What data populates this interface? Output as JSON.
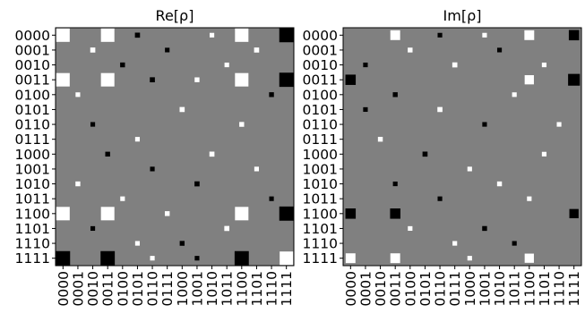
{
  "chart_data": [
    {
      "type": "heatmap",
      "title": "Re[ρ]",
      "labels": [
        "0000",
        "0001",
        "0010",
        "0011",
        "0100",
        "0101",
        "0110",
        "0111",
        "1000",
        "1001",
        "1010",
        "1011",
        "1100",
        "1101",
        "1110",
        "1111"
      ],
      "background": "#808080",
      "marks": [
        {
          "r": 0,
          "c": 0,
          "v": 0.85
        },
        {
          "r": 0,
          "c": 3,
          "v": 0.85
        },
        {
          "r": 0,
          "c": 12,
          "v": 0.85
        },
        {
          "r": 0,
          "c": 15,
          "v": -0.95
        },
        {
          "r": 3,
          "c": 0,
          "v": 0.85
        },
        {
          "r": 3,
          "c": 3,
          "v": 0.85
        },
        {
          "r": 3,
          "c": 12,
          "v": 0.85
        },
        {
          "r": 3,
          "c": 15,
          "v": -0.95
        },
        {
          "r": 12,
          "c": 0,
          "v": 0.85
        },
        {
          "r": 12,
          "c": 3,
          "v": 0.85
        },
        {
          "r": 12,
          "c": 12,
          "v": 0.85
        },
        {
          "r": 12,
          "c": 15,
          "v": -0.95
        },
        {
          "r": 15,
          "c": 0,
          "v": -0.95
        },
        {
          "r": 15,
          "c": 3,
          "v": -0.95
        },
        {
          "r": 15,
          "c": 12,
          "v": -0.95
        },
        {
          "r": 15,
          "c": 15,
          "v": 0.85
        }
      ],
      "noise": [
        {
          "r": 0,
          "c": 5,
          "v": -0.12
        },
        {
          "r": 0,
          "c": 10,
          "v": 0.1
        },
        {
          "r": 1,
          "c": 2,
          "v": 0.12
        },
        {
          "r": 1,
          "c": 7,
          "v": -0.1
        },
        {
          "r": 1,
          "c": 13,
          "v": 0.12
        },
        {
          "r": 2,
          "c": 4,
          "v": -0.11
        },
        {
          "r": 2,
          "c": 11,
          "v": 0.1
        },
        {
          "r": 3,
          "c": 6,
          "v": -0.12
        },
        {
          "r": 3,
          "c": 9,
          "v": 0.11
        },
        {
          "r": 4,
          "c": 1,
          "v": 0.1
        },
        {
          "r": 4,
          "c": 14,
          "v": -0.11
        },
        {
          "r": 5,
          "c": 8,
          "v": 0.12
        },
        {
          "r": 6,
          "c": 2,
          "v": -0.1
        },
        {
          "r": 6,
          "c": 12,
          "v": 0.11
        },
        {
          "r": 7,
          "c": 5,
          "v": 0.1
        },
        {
          "r": 8,
          "c": 3,
          "v": -0.11
        },
        {
          "r": 8,
          "c": 10,
          "v": 0.12
        },
        {
          "r": 9,
          "c": 6,
          "v": -0.1
        },
        {
          "r": 9,
          "c": 13,
          "v": 0.1
        },
        {
          "r": 10,
          "c": 1,
          "v": 0.11
        },
        {
          "r": 10,
          "c": 9,
          "v": -0.12
        },
        {
          "r": 11,
          "c": 4,
          "v": 0.1
        },
        {
          "r": 11,
          "c": 14,
          "v": -0.1
        },
        {
          "r": 12,
          "c": 7,
          "v": 0.11
        },
        {
          "r": 13,
          "c": 2,
          "v": -0.1
        },
        {
          "r": 13,
          "c": 11,
          "v": 0.12
        },
        {
          "r": 14,
          "c": 5,
          "v": 0.1
        },
        {
          "r": 14,
          "c": 8,
          "v": -0.11
        },
        {
          "r": 15,
          "c": 6,
          "v": 0.1
        },
        {
          "r": 15,
          "c": 9,
          "v": -0.1
        }
      ]
    },
    {
      "type": "heatmap",
      "title": "Im[ρ]",
      "labels": [
        "0000",
        "0001",
        "0010",
        "0011",
        "0100",
        "0101",
        "0110",
        "0111",
        "1000",
        "1001",
        "1010",
        "1011",
        "1100",
        "1101",
        "1110",
        "1111"
      ],
      "background": "#808080",
      "marks": [
        {
          "r": 0,
          "c": 3,
          "v": 0.45
        },
        {
          "r": 0,
          "c": 12,
          "v": 0.45
        },
        {
          "r": 0,
          "c": 15,
          "v": -0.5
        },
        {
          "r": 3,
          "c": 0,
          "v": -0.5
        },
        {
          "r": 3,
          "c": 12,
          "v": 0.4
        },
        {
          "r": 3,
          "c": 15,
          "v": -0.65
        },
        {
          "r": 12,
          "c": 0,
          "v": -0.5
        },
        {
          "r": 12,
          "c": 3,
          "v": -0.5
        },
        {
          "r": 12,
          "c": 15,
          "v": -0.4
        },
        {
          "r": 15,
          "c": 0,
          "v": 0.45
        },
        {
          "r": 15,
          "c": 3,
          "v": 0.45
        },
        {
          "r": 15,
          "c": 12,
          "v": 0.4
        }
      ],
      "noise": [
        {
          "r": 0,
          "c": 6,
          "v": -0.1
        },
        {
          "r": 0,
          "c": 9,
          "v": 0.1
        },
        {
          "r": 1,
          "c": 4,
          "v": 0.11
        },
        {
          "r": 1,
          "c": 10,
          "v": -0.1
        },
        {
          "r": 2,
          "c": 1,
          "v": -0.1
        },
        {
          "r": 2,
          "c": 7,
          "v": 0.12
        },
        {
          "r": 2,
          "c": 13,
          "v": 0.1
        },
        {
          "r": 4,
          "c": 3,
          "v": -0.11
        },
        {
          "r": 4,
          "c": 11,
          "v": 0.1
        },
        {
          "r": 5,
          "c": 1,
          "v": -0.1
        },
        {
          "r": 5,
          "c": 6,
          "v": 0.12
        },
        {
          "r": 6,
          "c": 9,
          "v": -0.1
        },
        {
          "r": 6,
          "c": 14,
          "v": 0.1
        },
        {
          "r": 7,
          "c": 2,
          "v": 0.11
        },
        {
          "r": 8,
          "c": 5,
          "v": -0.12
        },
        {
          "r": 8,
          "c": 13,
          "v": 0.1
        },
        {
          "r": 9,
          "c": 8,
          "v": 0.1
        },
        {
          "r": 10,
          "c": 3,
          "v": -0.1
        },
        {
          "r": 10,
          "c": 10,
          "v": 0.11
        },
        {
          "r": 11,
          "c": 6,
          "v": -0.1
        },
        {
          "r": 11,
          "c": 12,
          "v": 0.1
        },
        {
          "r": 13,
          "c": 4,
          "v": 0.1
        },
        {
          "r": 13,
          "c": 9,
          "v": -0.11
        },
        {
          "r": 14,
          "c": 7,
          "v": 0.1
        },
        {
          "r": 14,
          "c": 11,
          "v": -0.1
        },
        {
          "r": 15,
          "c": 8,
          "v": 0.1
        }
      ]
    }
  ]
}
